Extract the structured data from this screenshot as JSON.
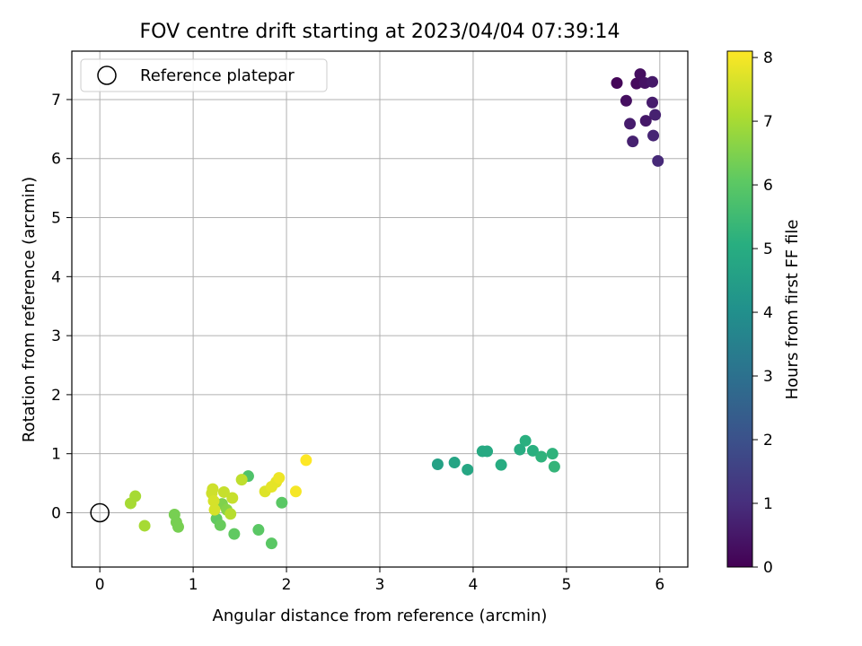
{
  "chart_data": {
    "type": "scatter",
    "title": "FOV centre drift starting at 2023/04/04 07:39:14",
    "xlabel": "Angular distance from reference (arcmin)",
    "ylabel": "Rotation from reference (arcmin)",
    "xlim": [
      -0.3,
      6.3
    ],
    "ylim": [
      -0.92,
      7.82
    ],
    "xticks": [
      "0",
      "1",
      "2",
      "3",
      "4",
      "5",
      "6"
    ],
    "yticks": [
      "0",
      "1",
      "2",
      "3",
      "4",
      "5",
      "6",
      "7"
    ],
    "grid": true,
    "legend": {
      "placement": "top-left",
      "entries": [
        "Reference platepar"
      ]
    },
    "reference_point": {
      "x": 0,
      "y": 0,
      "label": "Reference platepar"
    },
    "colorbar": {
      "label": "Hours from first FF file",
      "colormap": "viridis",
      "range": [
        0,
        8.1
      ],
      "ticks": [
        "0",
        "1",
        "2",
        "3",
        "4",
        "5",
        "6",
        "7",
        "8"
      ]
    },
    "points": [
      {
        "x": 5.54,
        "y": 7.28,
        "c": 0.1
      },
      {
        "x": 5.64,
        "y": 6.98,
        "c": 0.3
      },
      {
        "x": 5.75,
        "y": 7.27,
        "c": 0.2
      },
      {
        "x": 5.79,
        "y": 7.43,
        "c": 0.3
      },
      {
        "x": 5.84,
        "y": 7.28,
        "c": 0.4
      },
      {
        "x": 5.92,
        "y": 7.3,
        "c": 0.5
      },
      {
        "x": 5.92,
        "y": 6.95,
        "c": 0.6
      },
      {
        "x": 5.95,
        "y": 6.74,
        "c": 0.7
      },
      {
        "x": 5.85,
        "y": 6.64,
        "c": 0.5
      },
      {
        "x": 5.68,
        "y": 6.59,
        "c": 0.6
      },
      {
        "x": 5.71,
        "y": 6.29,
        "c": 0.7
      },
      {
        "x": 5.93,
        "y": 6.39,
        "c": 0.8
      },
      {
        "x": 5.98,
        "y": 5.96,
        "c": 0.9
      },
      {
        "x": 3.62,
        "y": 0.82,
        "c": 4.6
      },
      {
        "x": 3.8,
        "y": 0.85,
        "c": 4.7
      },
      {
        "x": 3.94,
        "y": 0.73,
        "c": 4.8
      },
      {
        "x": 4.1,
        "y": 1.04,
        "c": 4.9
      },
      {
        "x": 4.15,
        "y": 1.04,
        "c": 4.9
      },
      {
        "x": 4.3,
        "y": 0.81,
        "c": 5.0
      },
      {
        "x": 4.5,
        "y": 1.07,
        "c": 5.0
      },
      {
        "x": 4.56,
        "y": 1.22,
        "c": 5.1
      },
      {
        "x": 4.64,
        "y": 1.05,
        "c": 5.1
      },
      {
        "x": 4.73,
        "y": 0.95,
        "c": 5.2
      },
      {
        "x": 4.85,
        "y": 1.0,
        "c": 5.2
      },
      {
        "x": 4.87,
        "y": 0.78,
        "c": 5.3
      },
      {
        "x": 1.59,
        "y": 0.62,
        "c": 5.8
      },
      {
        "x": 1.95,
        "y": 0.17,
        "c": 6.0
      },
      {
        "x": 1.7,
        "y": -0.29,
        "c": 6.0
      },
      {
        "x": 1.84,
        "y": -0.52,
        "c": 6.0
      },
      {
        "x": 1.44,
        "y": -0.36,
        "c": 6.1
      },
      {
        "x": 1.25,
        "y": -0.1,
        "c": 6.1
      },
      {
        "x": 1.29,
        "y": -0.21,
        "c": 6.2
      },
      {
        "x": 0.8,
        "y": -0.03,
        "c": 6.4
      },
      {
        "x": 0.82,
        "y": -0.16,
        "c": 6.4
      },
      {
        "x": 0.84,
        "y": -0.24,
        "c": 6.4
      },
      {
        "x": 1.31,
        "y": 0.15,
        "c": 6.5
      },
      {
        "x": 1.36,
        "y": 0.05,
        "c": 6.6
      },
      {
        "x": 0.33,
        "y": 0.16,
        "c": 7.0
      },
      {
        "x": 0.38,
        "y": 0.28,
        "c": 7.0
      },
      {
        "x": 0.48,
        "y": -0.22,
        "c": 7.0
      },
      {
        "x": 1.4,
        "y": -0.02,
        "c": 7.2
      },
      {
        "x": 1.52,
        "y": 0.56,
        "c": 7.3
      },
      {
        "x": 1.42,
        "y": 0.25,
        "c": 7.4
      },
      {
        "x": 1.33,
        "y": 0.35,
        "c": 7.4
      },
      {
        "x": 1.21,
        "y": 0.4,
        "c": 7.5
      },
      {
        "x": 1.2,
        "y": 0.33,
        "c": 7.5
      },
      {
        "x": 1.22,
        "y": 0.2,
        "c": 7.6
      },
      {
        "x": 1.23,
        "y": 0.05,
        "c": 7.6
      },
      {
        "x": 1.77,
        "y": 0.36,
        "c": 7.7
      },
      {
        "x": 1.84,
        "y": 0.44,
        "c": 7.8
      },
      {
        "x": 1.89,
        "y": 0.52,
        "c": 7.8
      },
      {
        "x": 1.92,
        "y": 0.59,
        "c": 7.9
      },
      {
        "x": 2.1,
        "y": 0.36,
        "c": 8.0
      },
      {
        "x": 2.21,
        "y": 0.89,
        "c": 8.1
      }
    ]
  }
}
